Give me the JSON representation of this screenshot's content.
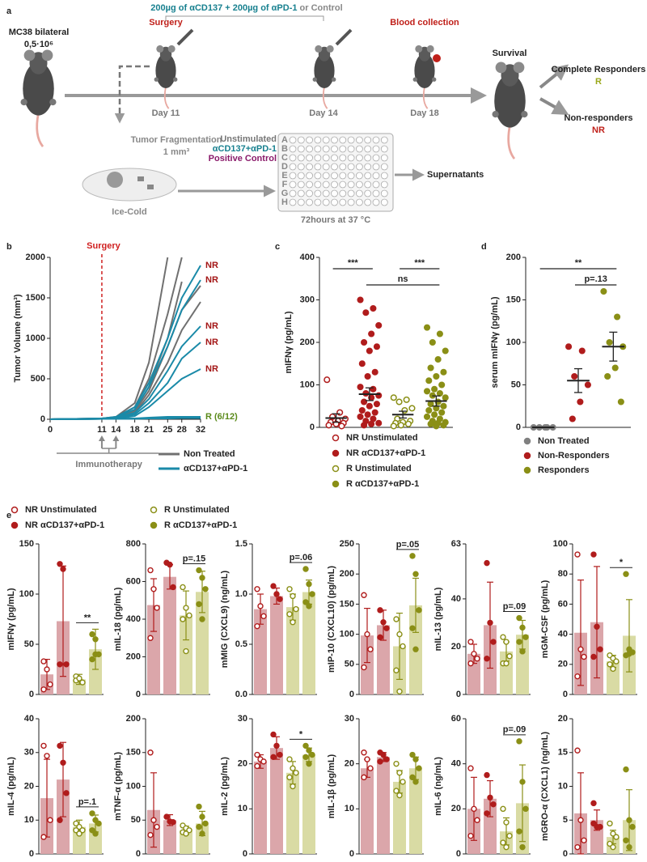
{
  "panel_a": {
    "label": "a",
    "model": "MC38 bilateral",
    "dose": "0,5·10⁶",
    "surgery": "Surgery",
    "treatment": "200µg of αCD137 + 200µg of αPD-1",
    "treatment_alt": " or Control",
    "blood": "Blood collection",
    "days": [
      "Day 11",
      "Day 14",
      "Day 18"
    ],
    "survival": "Survival",
    "complete": "Complete Responders",
    "r": "R",
    "nonresp": "Non-responders",
    "nr": "NR",
    "fragmentation": "Tumor Fragmentation",
    "size": "1 mm³",
    "cold": "Ice-Cold",
    "conditions": [
      "Unstimulated",
      "αCD137+αPD-1",
      "Positive Control"
    ],
    "rows": [
      "A",
      "B",
      "C",
      "D",
      "E",
      "F",
      "G",
      "H"
    ],
    "supernatants": "Supernatants",
    "incubation": "72hours at 37 °C"
  },
  "panel_e": {
    "label": "e",
    "legend": [
      {
        "name": "NR Unstimulated",
        "color": "#b01c1c",
        "filled": false
      },
      {
        "name": "NR αCD137+αPD-1",
        "color": "#b01c1c",
        "filled": true
      },
      {
        "name": "R Unstimulated",
        "color": "#8a8f16",
        "filled": false
      },
      {
        "name": "R αCD137+αPD-1",
        "color": "#8a8f16",
        "filled": true
      }
    ],
    "bar_colors": [
      "#dba6aa",
      "#dba6aa",
      "#d9dba4",
      "#d9dba4"
    ]
  },
  "chart_data": [
    {
      "type": "line",
      "label": "b",
      "ylabel": "Tumor Volume (mm³)",
      "x": [
        0,
        11,
        14,
        18,
        21,
        25,
        28,
        32
      ],
      "xlim": [
        0,
        32
      ],
      "xticks": [
        0,
        11,
        14,
        18,
        21,
        25,
        28,
        32
      ],
      "ylim": [
        0,
        2000
      ],
      "yticks": [
        0,
        500,
        1000,
        1500,
        2000
      ],
      "surgery_label": "Surgery",
      "surgery_day": 11,
      "treatment_label": "Immunotherapy",
      "treatment_days": [
        11,
        14
      ],
      "series": [
        {
          "name": "Non Treated",
          "color": "#707070",
          "lines": [
            {
              "values": [
                0,
                10,
                30,
                200,
                700,
                2000,
                null,
                null
              ]
            },
            {
              "values": [
                0,
                10,
                25,
                150,
                500,
                1300,
                2000,
                null
              ]
            },
            {
              "values": [
                0,
                8,
                20,
                120,
                400,
                1000,
                1700,
                null
              ]
            },
            {
              "values": [
                0,
                5,
                15,
                100,
                350,
                900,
                1350,
                1650
              ]
            },
            {
              "values": [
                0,
                5,
                15,
                80,
                300,
                700,
                1100,
                1450
              ]
            }
          ]
        },
        {
          "name": "αCD137+αPD-1",
          "color": "#1a8aa8",
          "lines": [
            {
              "values": [
                0,
                10,
                30,
                150,
                450,
                1000,
                1500,
                1900
              ],
              "label": "NR",
              "label_color": "#a31515"
            },
            {
              "values": [
                0,
                10,
                25,
                120,
                400,
                900,
                1350,
                1720
              ],
              "label": "NR",
              "label_color": "#a31515"
            },
            {
              "values": [
                0,
                8,
                20,
                80,
                250,
                600,
                900,
                1150
              ],
              "label": "NR",
              "label_color": "#a31515"
            },
            {
              "values": [
                0,
                5,
                15,
                60,
                200,
                450,
                750,
                950
              ],
              "label": "NR",
              "label_color": "#a31515"
            },
            {
              "values": [
                0,
                5,
                10,
                40,
                150,
                350,
                500,
                620
              ],
              "label": "NR",
              "label_color": "#a31515"
            },
            {
              "values": [
                0,
                5,
                5,
                10,
                20,
                30,
                30,
                30
              ],
              "label": "R (6/12)",
              "label_color": "#5a8a1a"
            },
            {
              "values": [
                0,
                5,
                5,
                5,
                10,
                10,
                15,
                15
              ]
            },
            {
              "values": [
                0,
                5,
                5,
                10,
                10,
                20,
                20,
                20
              ]
            }
          ]
        }
      ]
    },
    {
      "type": "dot",
      "label": "c",
      "ylabel": "mIFNγ (pg/mL)",
      "ylim": [
        0,
        400
      ],
      "yticks": [
        0,
        100,
        200,
        300,
        400
      ],
      "annotations": [
        "***",
        "***",
        "ns"
      ],
      "series": [
        {
          "name": "NR Unstimulated",
          "color": "#b01c1c",
          "filled": false,
          "mean": 22,
          "error": 10,
          "values": [
            112,
            35,
            25,
            20,
            15,
            12,
            10,
            8,
            5,
            3
          ]
        },
        {
          "name": "NR αCD137+αPD-1",
          "color": "#b01c1c",
          "filled": true,
          "mean": 78,
          "error": 15,
          "values": [
            300,
            280,
            270,
            240,
            220,
            200,
            190,
            180,
            150,
            130,
            120,
            95,
            90,
            80,
            75,
            70,
            60,
            55,
            50,
            40,
            35,
            30,
            25,
            20,
            15,
            10,
            8,
            5
          ]
        },
        {
          "name": "R Unstimulated",
          "color": "#8a8f16",
          "filled": false,
          "mean": 30,
          "error": 8,
          "values": [
            70,
            65,
            60,
            45,
            40,
            20,
            15,
            12,
            10,
            8,
            5,
            3
          ]
        },
        {
          "name": "R αCD137+αPD-1",
          "color": "#8a8f16",
          "filled": true,
          "mean": 62,
          "error": 12,
          "values": [
            235,
            220,
            200,
            180,
            160,
            140,
            130,
            120,
            110,
            100,
            90,
            85,
            80,
            75,
            70,
            60,
            55,
            50,
            45,
            40,
            35,
            30,
            25,
            20,
            15,
            12,
            10,
            8,
            5,
            3
          ]
        }
      ]
    },
    {
      "type": "dot",
      "label": "d",
      "ylabel": "serum mIFNγ (pg/mL)",
      "ylim": [
        0,
        200
      ],
      "yticks": [
        0,
        50,
        100,
        150,
        200
      ],
      "annotations": [
        "**",
        "p=.13"
      ],
      "series": [
        {
          "name": "Non Treated",
          "color": "#808080",
          "filled": true,
          "mean": 0,
          "error": 0,
          "values": [
            0,
            0,
            0,
            0,
            0
          ]
        },
        {
          "name": "Non-Responders",
          "color": "#b01c1c",
          "filled": true,
          "mean": 55,
          "error": 14,
          "values": [
            95,
            90,
            60,
            50,
            30,
            10
          ]
        },
        {
          "name": "Responders",
          "color": "#8a8f16",
          "filled": true,
          "mean": 95,
          "error": 17,
          "values": [
            160,
            130,
            100,
            95,
            70,
            60,
            30
          ]
        }
      ]
    },
    {
      "type": "bar",
      "ylabel": "mIFNγ (pg/mL)",
      "ylim": [
        0,
        150
      ],
      "yticks": [
        0,
        50,
        100,
        150
      ],
      "annotation": "**",
      "values": [
        20,
        73,
        15,
        45
      ],
      "errors": [
        15,
        55,
        5,
        20
      ],
      "points": [
        [
          33,
          25,
          10,
          5
        ],
        [
          130,
          125,
          30,
          30
        ],
        [
          18,
          15,
          12,
          14,
          16
        ],
        [
          60,
          40,
          40,
          35,
          55
        ]
      ]
    },
    {
      "type": "bar",
      "ylabel": "mIL-18 (pg/mL)",
      "ylim": [
        0,
        800
      ],
      "yticks": [
        0,
        200,
        400,
        600,
        800
      ],
      "annotation": "p=.15",
      "values": [
        475,
        625,
        420,
        545
      ],
      "errors": [
        140,
        65,
        130,
        110
      ],
      "points": [
        [
          660,
          560,
          460,
          300
        ],
        [
          700,
          690,
          570
        ],
        [
          570,
          460,
          420,
          400,
          230
        ],
        [
          660,
          620,
          560,
          480,
          400
        ]
      ]
    },
    {
      "type": "bar",
      "ylabel": "mMIG (CXCL9) (ng/mL)",
      "ylim": [
        0,
        1.5
      ],
      "yticks": [
        {
          "value": 0,
          "label": "0.0"
        },
        0.5,
        {
          "value": 1,
          "label": "1.0"
        },
        1.5
      ],
      "annotation": "p=.06",
      "values": [
        0.85,
        0.98,
        0.87,
        1.02
      ],
      "errors": [
        0.15,
        0.08,
        0.13,
        0.12
      ],
      "points": [
        [
          1.05,
          0.88,
          0.78,
          0.68
        ],
        [
          1.08,
          1.0,
          0.95
        ],
        [
          1.05,
          0.98,
          0.85,
          0.8,
          0.72
        ],
        [
          1.25,
          1.1,
          1.0,
          0.92,
          0.88
        ]
      ]
    },
    {
      "type": "bar",
      "ylabel": "mIP-10 (CXCL10) (pg/mL)",
      "ylim": [
        0,
        250
      ],
      "yticks": [
        0,
        50,
        100,
        150,
        200,
        250
      ],
      "annotation": "p=.05",
      "values": [
        98,
        115,
        80,
        148
      ],
      "errors": [
        45,
        25,
        55,
        45
      ],
      "points": [
        [
          165,
          100,
          75,
          45
        ],
        [
          140,
          120,
          110,
          95
        ],
        [
          125,
          100,
          80,
          40,
          5
        ],
        [
          230,
          200,
          140,
          110,
          75
        ]
      ]
    },
    {
      "type": "bar",
      "ylabel": "mIL-13 (pg/mL)",
      "ylim": [
        0,
        63
      ],
      "yticks": [
        0,
        20,
        40,
        63
      ],
      "annotation": "p=.09",
      "values": [
        17,
        29,
        18,
        25
      ],
      "errors": [
        4,
        18,
        4,
        6
      ],
      "points": [
        [
          22,
          17,
          15,
          13
        ],
        [
          55,
          30,
          22,
          15
        ],
        [
          24,
          22,
          16,
          13,
          13
        ],
        [
          32,
          28,
          24,
          22,
          18
        ]
      ]
    },
    {
      "type": "bar",
      "ylabel": "mGM-CSF (pg/mL)",
      "ylim": [
        0,
        100
      ],
      "yticks": [
        0,
        20,
        40,
        60,
        80,
        100
      ],
      "annotation": "*",
      "values": [
        41,
        48,
        22,
        39
      ],
      "errors": [
        35,
        37,
        4,
        24
      ],
      "points": [
        [
          93,
          30,
          25,
          12
        ],
        [
          93,
          45,
          30,
          25
        ],
        [
          26,
          24,
          22,
          20,
          17
        ],
        [
          80,
          30,
          28,
          26,
          27
        ]
      ]
    },
    {
      "type": "bar",
      "ylabel": "mIL-4 (pg/mL)",
      "ylim": [
        0,
        40
      ],
      "yticks": [
        0,
        10,
        20,
        30,
        40
      ],
      "annotation": "p=.1",
      "values": [
        16.5,
        22,
        8,
        9
      ],
      "errors": [
        11.5,
        11,
        2,
        2.5
      ],
      "points": [
        [
          32,
          29,
          10,
          5
        ],
        [
          32,
          27,
          18,
          10
        ],
        [
          9,
          8,
          7,
          7,
          6
        ],
        [
          12,
          10,
          9,
          7,
          6
        ]
      ]
    },
    {
      "type": "bar",
      "ylabel": "mTNF-α (pg/mL)",
      "ylim": [
        0,
        200
      ],
      "yticks": [
        0,
        50,
        100,
        150,
        200
      ],
      "values": [
        65,
        50,
        35,
        45
      ],
      "errors": [
        55,
        8,
        6,
        18
      ],
      "points": [
        [
          150,
          50,
          40,
          28
        ],
        [
          55,
          48,
          47
        ],
        [
          42,
          38,
          35,
          32,
          30
        ],
        [
          70,
          55,
          45,
          40,
          30
        ]
      ]
    },
    {
      "type": "bar",
      "ylabel": "mIL-2 (pg/mL)",
      "ylim": [
        0,
        30
      ],
      "yticks": [
        0,
        10,
        20,
        30
      ],
      "annotation": "*",
      "values": [
        20.5,
        23.5,
        18,
        22
      ],
      "errors": [
        1.5,
        2.5,
        2.5,
        1.5
      ],
      "points": [
        [
          22,
          21,
          20.5,
          19.5
        ],
        [
          26.5,
          24,
          22,
          21.5
        ],
        [
          21,
          19,
          18,
          17,
          15
        ],
        [
          24,
          23,
          22,
          21.5,
          20
        ]
      ]
    },
    {
      "type": "bar",
      "ylabel": "mIL-1β (pg/mL)",
      "ylim": [
        0,
        30
      ],
      "yticks": [
        0,
        10,
        20,
        30
      ],
      "values": [
        19,
        21.5,
        16,
        19
      ],
      "errors": [
        2,
        1,
        2.5,
        2.5
      ],
      "points": [
        [
          22.5,
          21,
          19,
          17
        ],
        [
          22.5,
          22,
          21,
          20.5
        ],
        [
          20,
          18,
          16,
          14,
          13
        ],
        [
          22,
          21,
          19,
          17,
          16
        ]
      ]
    },
    {
      "type": "bar",
      "ylabel": "mIL-6 (ng/mL)",
      "ylim": [
        0,
        60
      ],
      "yticks": [
        0,
        20,
        40,
        60
      ],
      "annotation": "p=.09",
      "values": [
        20,
        24.5,
        10,
        22.5
      ],
      "errors": [
        14,
        8,
        6,
        17
      ],
      "points": [
        [
          38,
          20,
          15,
          8
        ],
        [
          35,
          25,
          22,
          18
        ],
        [
          20,
          14,
          8,
          5,
          3
        ],
        [
          50,
          32,
          20,
          10,
          3
        ]
      ]
    },
    {
      "type": "bar",
      "ylabel": "mGRO-α (CXCL1) (ng/mL)",
      "ylim": [
        0,
        20
      ],
      "yticks": [
        0,
        5,
        10,
        15,
        20
      ],
      "values": [
        6,
        5,
        2.5,
        5
      ],
      "errors": [
        6,
        1.5,
        1,
        4.5
      ],
      "points": [
        [
          15.3,
          5,
          2,
          1
        ],
        [
          7.5,
          4,
          4,
          4.5
        ],
        [
          4.5,
          3,
          2.5,
          1.5,
          1
        ],
        [
          12.5,
          5,
          4,
          2,
          1
        ]
      ]
    }
  ]
}
